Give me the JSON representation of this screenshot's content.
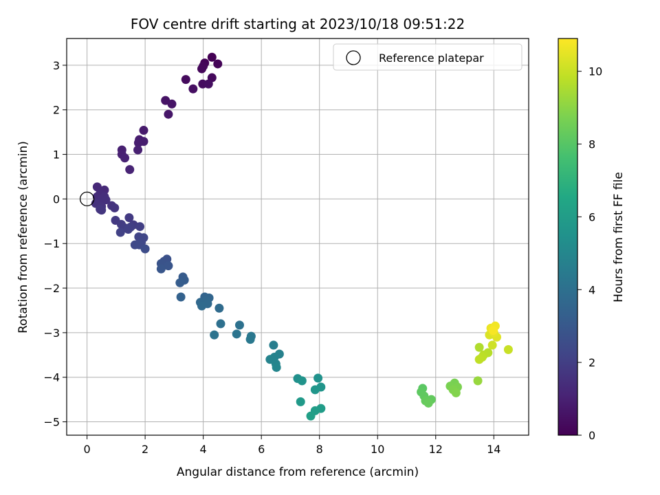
{
  "chart_data": {
    "type": "scatter",
    "title": "FOV centre drift starting at 2023/10/18 09:51:22",
    "xlabel": "Angular distance from reference (arcmin)",
    "ylabel": "Rotation from reference (arcmin)",
    "xlim": [
      -0.7,
      15.2
    ],
    "ylim": [
      -5.3,
      3.6
    ],
    "x_ticks": [
      0,
      2,
      4,
      6,
      8,
      10,
      12,
      14
    ],
    "y_ticks": [
      -5,
      -4,
      -3,
      -2,
      -1,
      0,
      1,
      2,
      3
    ],
    "x_tick_labels": [
      "0",
      "2",
      "4",
      "6",
      "8",
      "10",
      "12",
      "14"
    ],
    "y_tick_labels": [
      "−5",
      "−4",
      "−3",
      "−2",
      "−1",
      "0",
      "1",
      "2",
      "3"
    ],
    "grid": true,
    "legend": {
      "position": "top-right",
      "entries": [
        "Reference platepar"
      ]
    },
    "reference_point": {
      "x": 0,
      "y": 0
    },
    "colorbar": {
      "label": "Hours from first FF file",
      "range": [
        0,
        10.9
      ],
      "ticks": [
        0,
        2,
        4,
        6,
        8,
        10
      ],
      "tick_labels": [
        "0",
        "2",
        "4",
        "6",
        "8",
        "10"
      ],
      "colormap": "viridis"
    },
    "points": [
      {
        "x": 4.3,
        "y": 3.18,
        "h": 0.0
      },
      {
        "x": 4.05,
        "y": 3.05,
        "h": 0.05
      },
      {
        "x": 4.5,
        "y": 3.03,
        "h": 0.1
      },
      {
        "x": 4.0,
        "y": 2.98,
        "h": 0.15
      },
      {
        "x": 3.95,
        "y": 2.92,
        "h": 0.2
      },
      {
        "x": 4.3,
        "y": 2.72,
        "h": 0.25
      },
      {
        "x": 3.4,
        "y": 2.68,
        "h": 0.3
      },
      {
        "x": 3.98,
        "y": 2.58,
        "h": 0.35
      },
      {
        "x": 4.18,
        "y": 2.58,
        "h": 0.4
      },
      {
        "x": 3.65,
        "y": 2.47,
        "h": 0.45
      },
      {
        "x": 2.7,
        "y": 2.21,
        "h": 0.55
      },
      {
        "x": 2.92,
        "y": 2.13,
        "h": 0.6
      },
      {
        "x": 2.8,
        "y": 1.9,
        "h": 0.65
      },
      {
        "x": 1.95,
        "y": 1.54,
        "h": 0.8
      },
      {
        "x": 1.8,
        "y": 1.33,
        "h": 0.85
      },
      {
        "x": 1.95,
        "y": 1.29,
        "h": 0.9
      },
      {
        "x": 1.77,
        "y": 1.26,
        "h": 0.9
      },
      {
        "x": 1.2,
        "y": 1.1,
        "h": 0.95
      },
      {
        "x": 1.75,
        "y": 1.1,
        "h": 1.0
      },
      {
        "x": 1.2,
        "y": 1.0,
        "h": 1.0
      },
      {
        "x": 1.3,
        "y": 0.92,
        "h": 1.05
      },
      {
        "x": 1.47,
        "y": 0.66,
        "h": 1.1
      },
      {
        "x": 0.35,
        "y": 0.27,
        "h": 1.25
      },
      {
        "x": 0.6,
        "y": 0.2,
        "h": 1.3
      },
      {
        "x": 0.45,
        "y": 0.12,
        "h": 1.35
      },
      {
        "x": 0.35,
        "y": 0.05,
        "h": 1.4
      },
      {
        "x": 0.6,
        "y": 0.05,
        "h": 1.45
      },
      {
        "x": 0.5,
        "y": 0.0,
        "h": 1.45
      },
      {
        "x": 0.65,
        "y": -0.02,
        "h": 1.5
      },
      {
        "x": 0.45,
        "y": -0.08,
        "h": 1.5
      },
      {
        "x": 0.3,
        "y": -0.1,
        "h": 1.55
      },
      {
        "x": 0.85,
        "y": -0.15,
        "h": 1.6
      },
      {
        "x": 0.5,
        "y": -0.17,
        "h": 1.6
      },
      {
        "x": 0.95,
        "y": -0.2,
        "h": 1.65
      },
      {
        "x": 0.45,
        "y": -0.23,
        "h": 1.7
      },
      {
        "x": 0.5,
        "y": -0.25,
        "h": 1.7
      },
      {
        "x": 0.98,
        "y": -0.48,
        "h": 1.8
      },
      {
        "x": 1.45,
        "y": -0.42,
        "h": 1.85
      },
      {
        "x": 1.18,
        "y": -0.57,
        "h": 1.9
      },
      {
        "x": 1.6,
        "y": -0.58,
        "h": 1.9
      },
      {
        "x": 1.3,
        "y": -0.65,
        "h": 1.95
      },
      {
        "x": 1.5,
        "y": -0.63,
        "h": 2.0
      },
      {
        "x": 1.82,
        "y": -0.62,
        "h": 2.0
      },
      {
        "x": 1.42,
        "y": -0.68,
        "h": 2.05
      },
      {
        "x": 1.15,
        "y": -0.75,
        "h": 2.1
      },
      {
        "x": 1.78,
        "y": -0.85,
        "h": 2.2
      },
      {
        "x": 1.95,
        "y": -0.87,
        "h": 2.25
      },
      {
        "x": 1.87,
        "y": -0.97,
        "h": 2.3
      },
      {
        "x": 1.65,
        "y": -1.03,
        "h": 2.35
      },
      {
        "x": 1.8,
        "y": -1.03,
        "h": 2.4
      },
      {
        "x": 2.0,
        "y": -1.12,
        "h": 2.5
      },
      {
        "x": 2.75,
        "y": -1.35,
        "h": 2.7
      },
      {
        "x": 2.65,
        "y": -1.4,
        "h": 2.75
      },
      {
        "x": 2.55,
        "y": -1.45,
        "h": 2.8
      },
      {
        "x": 2.8,
        "y": -1.5,
        "h": 2.85
      },
      {
        "x": 2.55,
        "y": -1.57,
        "h": 2.9
      },
      {
        "x": 3.3,
        "y": -1.75,
        "h": 3.1
      },
      {
        "x": 3.35,
        "y": -1.82,
        "h": 3.15
      },
      {
        "x": 3.2,
        "y": -1.88,
        "h": 3.2
      },
      {
        "x": 3.23,
        "y": -2.2,
        "h": 3.4
      },
      {
        "x": 4.05,
        "y": -2.2,
        "h": 3.5
      },
      {
        "x": 4.2,
        "y": -2.22,
        "h": 3.55
      },
      {
        "x": 4.1,
        "y": -2.28,
        "h": 3.6
      },
      {
        "x": 3.9,
        "y": -2.32,
        "h": 3.65
      },
      {
        "x": 4.15,
        "y": -2.35,
        "h": 3.7
      },
      {
        "x": 3.95,
        "y": -2.4,
        "h": 3.75
      },
      {
        "x": 4.55,
        "y": -2.45,
        "h": 3.8
      },
      {
        "x": 4.6,
        "y": -2.8,
        "h": 4.0
      },
      {
        "x": 5.25,
        "y": -2.83,
        "h": 4.05
      },
      {
        "x": 4.38,
        "y": -3.05,
        "h": 4.15
      },
      {
        "x": 5.15,
        "y": -3.03,
        "h": 4.2
      },
      {
        "x": 5.65,
        "y": -3.08,
        "h": 4.3
      },
      {
        "x": 5.62,
        "y": -3.15,
        "h": 4.35
      },
      {
        "x": 6.42,
        "y": -3.28,
        "h": 4.6
      },
      {
        "x": 6.62,
        "y": -3.48,
        "h": 4.75
      },
      {
        "x": 6.45,
        "y": -3.55,
        "h": 4.8
      },
      {
        "x": 6.3,
        "y": -3.6,
        "h": 4.85
      },
      {
        "x": 6.5,
        "y": -3.7,
        "h": 4.9
      },
      {
        "x": 6.52,
        "y": -3.78,
        "h": 4.95
      },
      {
        "x": 7.25,
        "y": -4.03,
        "h": 5.4
      },
      {
        "x": 7.95,
        "y": -4.02,
        "h": 5.5
      },
      {
        "x": 7.4,
        "y": -4.08,
        "h": 5.55
      },
      {
        "x": 8.05,
        "y": -4.22,
        "h": 5.65
      },
      {
        "x": 7.85,
        "y": -4.28,
        "h": 5.7
      },
      {
        "x": 7.35,
        "y": -4.55,
        "h": 5.85
      },
      {
        "x": 8.05,
        "y": -4.7,
        "h": 5.95
      },
      {
        "x": 7.85,
        "y": -4.75,
        "h": 6.0
      },
      {
        "x": 7.7,
        "y": -4.87,
        "h": 6.1
      },
      {
        "x": 11.55,
        "y": -4.25,
        "h": 8.1
      },
      {
        "x": 11.5,
        "y": -4.33,
        "h": 8.15
      },
      {
        "x": 11.6,
        "y": -4.42,
        "h": 8.2
      },
      {
        "x": 11.85,
        "y": -4.5,
        "h": 8.25
      },
      {
        "x": 11.65,
        "y": -4.53,
        "h": 8.3
      },
      {
        "x": 11.75,
        "y": -4.58,
        "h": 8.35
      },
      {
        "x": 12.65,
        "y": -4.13,
        "h": 8.65
      },
      {
        "x": 12.5,
        "y": -4.2,
        "h": 8.7
      },
      {
        "x": 12.75,
        "y": -4.22,
        "h": 8.75
      },
      {
        "x": 12.6,
        "y": -4.28,
        "h": 8.8
      },
      {
        "x": 12.7,
        "y": -4.35,
        "h": 8.85
      },
      {
        "x": 13.45,
        "y": -4.08,
        "h": 9.2
      },
      {
        "x": 13.5,
        "y": -3.33,
        "h": 9.6
      },
      {
        "x": 13.8,
        "y": -3.45,
        "h": 9.7
      },
      {
        "x": 13.65,
        "y": -3.5,
        "h": 9.75
      },
      {
        "x": 13.6,
        "y": -3.55,
        "h": 9.8
      },
      {
        "x": 13.5,
        "y": -3.6,
        "h": 9.85
      },
      {
        "x": 14.5,
        "y": -3.38,
        "h": 10.0
      },
      {
        "x": 13.95,
        "y": -3.28,
        "h": 10.1
      },
      {
        "x": 13.85,
        "y": -3.05,
        "h": 10.3
      },
      {
        "x": 14.1,
        "y": -3.1,
        "h": 10.4
      },
      {
        "x": 14.0,
        "y": -3.0,
        "h": 10.5
      },
      {
        "x": 13.9,
        "y": -2.9,
        "h": 10.6
      },
      {
        "x": 14.05,
        "y": -2.85,
        "h": 10.7
      },
      {
        "x": 13.98,
        "y": -2.95,
        "h": 10.8
      }
    ]
  }
}
